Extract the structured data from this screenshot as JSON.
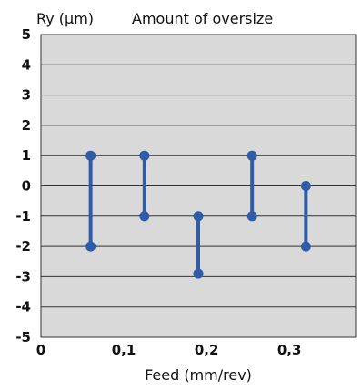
{
  "chart_data": {
    "type": "range",
    "title": "Amount of oversize",
    "ylabel": "Ry (µm)",
    "xlabel": "Feed (mm/rev)",
    "xlim": [
      0,
      0.38
    ],
    "ylim": [
      -5,
      5
    ],
    "x_ticks": [
      {
        "value": 0,
        "label": "0"
      },
      {
        "value": 0.1,
        "label": "0,1"
      },
      {
        "value": 0.2,
        "label": "0,2"
      },
      {
        "value": 0.3,
        "label": "0,3"
      }
    ],
    "y_ticks": [
      {
        "value": 5,
        "label": "5"
      },
      {
        "value": 4,
        "label": "4"
      },
      {
        "value": 3,
        "label": "3"
      },
      {
        "value": 2,
        "label": "2"
      },
      {
        "value": 1,
        "label": "1"
      },
      {
        "value": 0,
        "label": "0"
      },
      {
        "value": -1,
        "label": "-1"
      },
      {
        "value": -2,
        "label": "-2"
      },
      {
        "value": -3,
        "label": "-3"
      },
      {
        "value": -4,
        "label": "-4"
      },
      {
        "value": -5,
        "label": "-5"
      }
    ],
    "grid": true,
    "points": [
      {
        "x": 0.06,
        "low": -2,
        "high": 1
      },
      {
        "x": 0.125,
        "low": -1,
        "high": 1
      },
      {
        "x": 0.19,
        "low": -2.9,
        "high": -1
      },
      {
        "x": 0.255,
        "low": -1,
        "high": 1
      },
      {
        "x": 0.32,
        "low": -2,
        "high": 0
      }
    ],
    "colors": {
      "plot_bg": "#d9d9d9",
      "grid": "#333333",
      "marker": "#2e5ca6"
    }
  }
}
